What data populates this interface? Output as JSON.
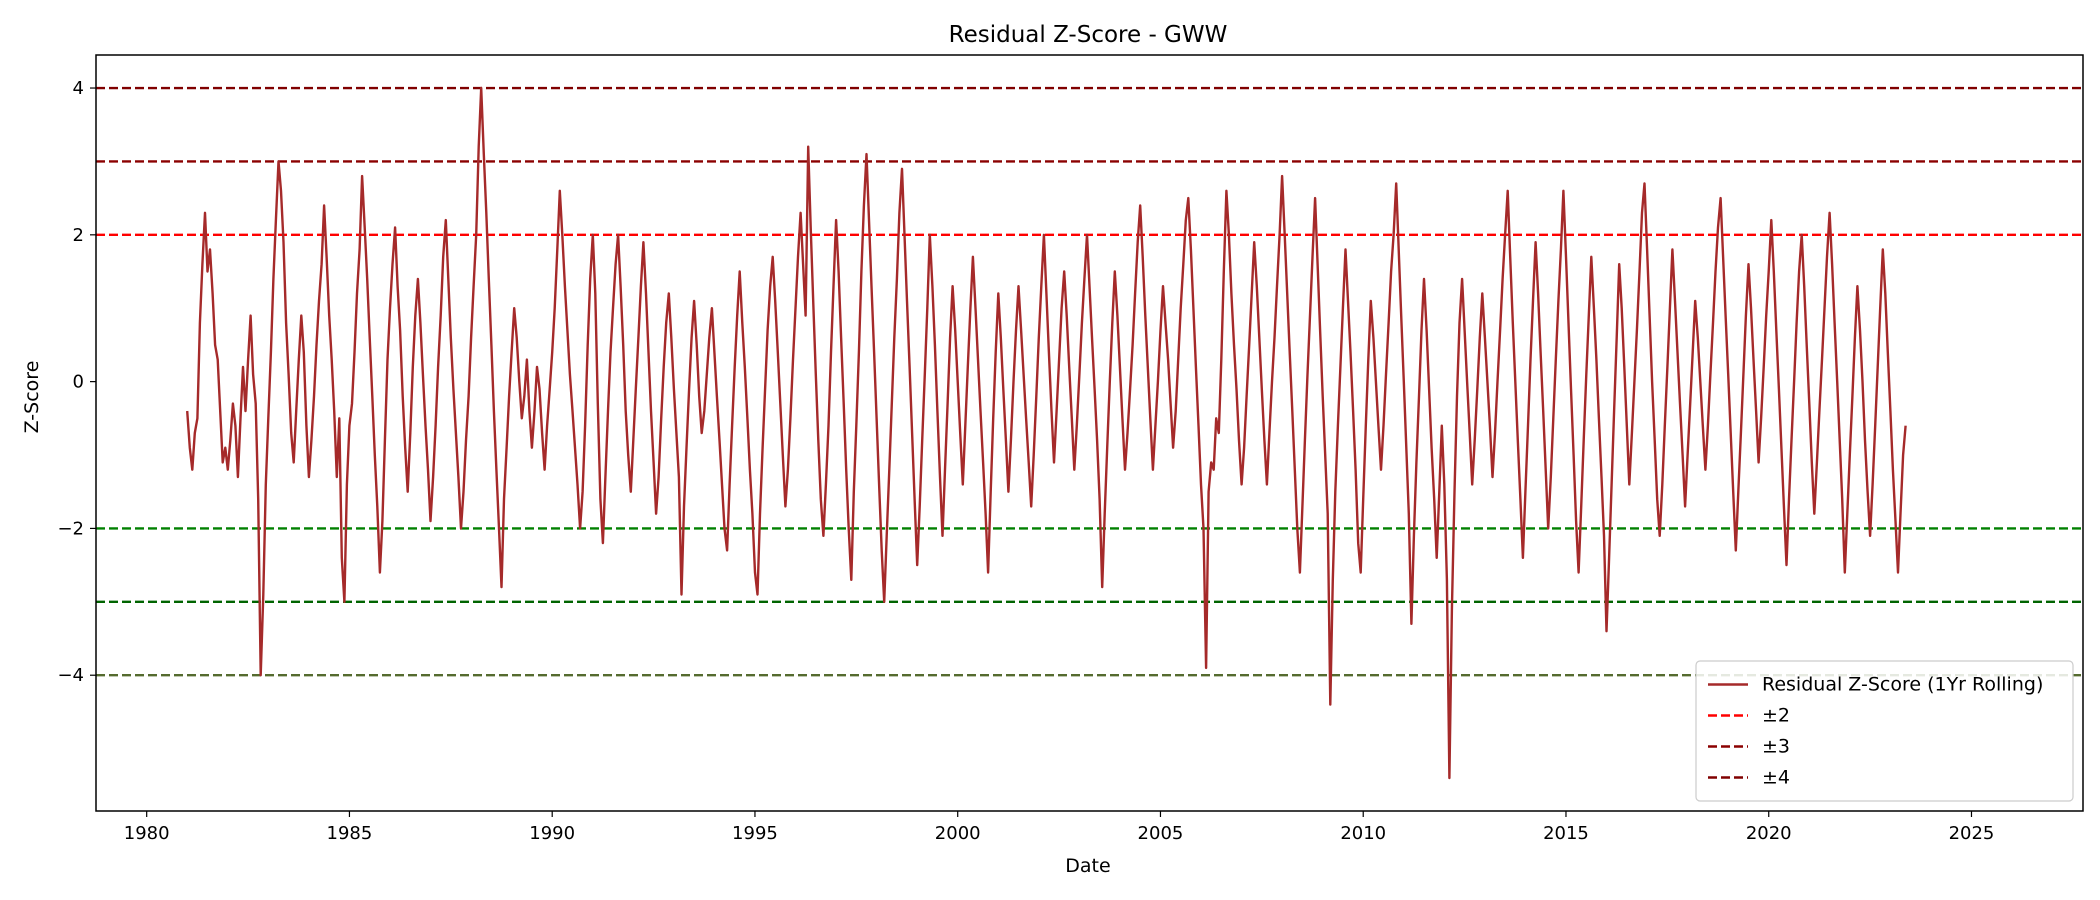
{
  "chart_data": {
    "type": "line",
    "title": "Residual Z-Score - GWW",
    "xlabel": "Date",
    "ylabel": "Z-Score",
    "xlim": [
      1978.75,
      2027.75
    ],
    "ylim": [
      -5.85,
      4.45
    ],
    "x_ticks": [
      1980,
      1985,
      1990,
      1995,
      2000,
      2005,
      2010,
      2015,
      2020,
      2025
    ],
    "y_ticks": [
      -4,
      -2,
      0,
      2,
      4
    ],
    "grid": false,
    "legend_position": "lower-right",
    "series": [
      {
        "name": "Residual Z-Score (1Yr Rolling)",
        "color": "#a52a2a",
        "x_start": 1981.0,
        "x_step": 0.0625,
        "values": [
          -0.4,
          -0.9,
          -1.2,
          -0.7,
          -0.5,
          0.8,
          1.6,
          2.3,
          1.5,
          1.8,
          1.2,
          0.5,
          0.3,
          -0.4,
          -1.1,
          -0.9,
          -1.2,
          -0.8,
          -0.3,
          -0.6,
          -1.3,
          -0.5,
          0.2,
          -0.4,
          0.3,
          0.9,
          0.1,
          -0.3,
          -1.6,
          -4.0,
          -2.9,
          -1.4,
          -0.5,
          0.4,
          1.4,
          2.2,
          3.0,
          2.6,
          1.9,
          0.8,
          0.1,
          -0.7,
          -1.1,
          -0.4,
          0.3,
          0.9,
          0.4,
          -0.6,
          -1.3,
          -0.8,
          -0.2,
          0.5,
          1.1,
          1.6,
          2.4,
          1.7,
          0.9,
          0.3,
          -0.4,
          -1.3,
          -0.5,
          -2.4,
          -3.0,
          -1.4,
          -0.6,
          -0.3,
          0.4,
          1.2,
          1.8,
          2.8,
          2.1,
          1.4,
          0.6,
          -0.2,
          -1.0,
          -1.7,
          -2.6,
          -1.9,
          -0.8,
          0.3,
          1.0,
          1.6,
          2.1,
          1.3,
          0.7,
          -0.2,
          -0.9,
          -1.5,
          -0.7,
          0.2,
          0.9,
          1.4,
          0.8,
          0.1,
          -0.6,
          -1.2,
          -1.9,
          -1.3,
          -0.6,
          0.2,
          0.9,
          1.7,
          2.2,
          1.4,
          0.6,
          -0.1,
          -0.7,
          -1.3,
          -2.0,
          -1.5,
          -0.8,
          -0.2,
          0.6,
          1.3,
          2.0,
          3.2,
          4.0,
          3.1,
          2.3,
          1.4,
          0.5,
          -0.4,
          -1.2,
          -2.0,
          -2.8,
          -1.6,
          -0.9,
          -0.2,
          0.4,
          1.0,
          0.6,
          0.0,
          -0.5,
          -0.2,
          0.3,
          -0.4,
          -0.9,
          -0.4,
          0.2,
          -0.1,
          -0.7,
          -1.2,
          -0.6,
          -0.1,
          0.4,
          1.0,
          1.8,
          2.6,
          2.0,
          1.3,
          0.7,
          0.1,
          -0.4,
          -0.9,
          -1.4,
          -2.0,
          -1.5,
          -0.6,
          0.5,
          1.4,
          2.0,
          1.2,
          -0.3,
          -1.6,
          -2.2,
          -1.3,
          -0.4,
          0.4,
          1.0,
          1.6,
          2.0,
          1.3,
          0.5,
          -0.4,
          -1.0,
          -1.5,
          -0.8,
          -0.1,
          0.6,
          1.3,
          1.9,
          1.2,
          0.4,
          -0.4,
          -1.1,
          -1.8,
          -1.3,
          -0.5,
          0.2,
          0.8,
          1.2,
          0.6,
          -0.1,
          -0.7,
          -1.3,
          -2.9,
          -1.7,
          -0.9,
          -0.1,
          0.6,
          1.1,
          0.5,
          -0.2,
          -0.7,
          -0.4,
          0.1,
          0.6,
          1.0,
          0.4,
          -0.2,
          -0.8,
          -1.4,
          -2.0,
          -2.3,
          -1.4,
          -0.6,
          0.2,
          0.9,
          1.5,
          0.8,
          0.2,
          -0.5,
          -1.2,
          -1.8,
          -2.6,
          -2.9,
          -1.8,
          -0.9,
          -0.1,
          0.7,
          1.3,
          1.7,
          1.1,
          0.4,
          -0.3,
          -1.0,
          -1.7,
          -1.2,
          -0.5,
          0.3,
          1.0,
          1.7,
          2.3,
          1.6,
          0.9,
          3.2,
          2.1,
          1.1,
          0.1,
          -0.8,
          -1.6,
          -2.1,
          -1.4,
          -0.6,
          0.4,
          1.3,
          2.2,
          1.5,
          0.6,
          -0.3,
          -1.2,
          -2.0,
          -2.7,
          -1.5,
          -0.6,
          0.4,
          1.5,
          2.4,
          3.1,
          2.2,
          1.3,
          0.4,
          -0.5,
          -1.4,
          -2.3,
          -3.0,
          -2.1,
          -1.2,
          -0.3,
          0.6,
          1.4,
          2.3,
          2.9,
          2.0,
          1.1,
          0.2,
          -0.7,
          -1.6,
          -2.5,
          -1.7,
          -0.8,
          0.1,
          1.0,
          2.0,
          1.3,
          0.5,
          -0.4,
          -1.3,
          -2.1,
          -1.2,
          -0.3,
          0.6,
          1.3,
          0.7,
          0.0,
          -0.7,
          -1.4,
          -0.6,
          0.2,
          1.0,
          1.7,
          1.0,
          0.3,
          -0.4,
          -1.1,
          -1.8,
          -2.6,
          -1.5,
          -0.5,
          0.4,
          1.2,
          0.6,
          -0.1,
          -0.8,
          -1.5,
          -0.8,
          0.0,
          0.7,
          1.3,
          0.7,
          0.1,
          -0.5,
          -1.1,
          -1.7,
          -1.0,
          -0.2,
          0.6,
          1.3,
          2.0,
          1.2,
          0.4,
          -0.4,
          -1.1,
          -0.4,
          0.3,
          1.0,
          1.5,
          0.9,
          0.2,
          -0.5,
          -1.2,
          -0.6,
          0.1,
          0.8,
          1.4,
          2.0,
          1.3,
          0.6,
          -0.1,
          -0.8,
          -1.6,
          -2.8,
          -1.8,
          -0.9,
          0.0,
          0.8,
          1.5,
          0.9,
          0.2,
          -0.5,
          -1.2,
          -0.7,
          -0.1,
          0.5,
          1.2,
          1.9,
          2.4,
          1.7,
          0.9,
          0.2,
          -0.5,
          -1.2,
          -0.6,
          0.0,
          0.7,
          1.3,
          0.8,
          0.3,
          -0.3,
          -0.9,
          -0.4,
          0.3,
          1.0,
          1.6,
          2.2,
          2.5,
          1.8,
          1.0,
          0.2,
          -0.6,
          -1.4,
          -2.0,
          -3.9,
          -1.5,
          -1.1,
          -1.2,
          -0.5,
          -0.7,
          0.3,
          1.5,
          2.6,
          2.0,
          1.2,
          0.5,
          -0.1,
          -0.8,
          -1.4,
          -0.9,
          -0.2,
          0.5,
          1.2,
          1.9,
          1.3,
          0.6,
          -0.1,
          -0.8,
          -1.4,
          -0.7,
          0.0,
          0.6,
          1.3,
          2.0,
          2.8,
          2.0,
          1.2,
          0.4,
          -0.4,
          -1.2,
          -2.0,
          -2.6,
          -1.7,
          -0.8,
          0.1,
          0.9,
          1.7,
          2.5,
          1.6,
          0.7,
          -0.2,
          -1.0,
          -1.8,
          -4.4,
          -2.7,
          -1.5,
          -0.6,
          0.2,
          1.0,
          1.8,
          1.1,
          0.4,
          -0.4,
          -1.2,
          -2.2,
          -2.6,
          -1.6,
          -0.6,
          0.3,
          1.1,
          0.6,
          0.0,
          -0.6,
          -1.2,
          -0.6,
          0.1,
          0.8,
          1.5,
          2.0,
          2.7,
          1.8,
          0.9,
          0.0,
          -0.9,
          -1.8,
          -3.3,
          -2.1,
          -1.1,
          -0.2,
          0.7,
          1.4,
          0.7,
          -0.1,
          -0.9,
          -1.6,
          -2.4,
          -1.5,
          -0.6,
          -1.4,
          -2.7,
          -5.4,
          -3.1,
          -1.5,
          -0.2,
          0.8,
          1.4,
          0.7,
          0.0,
          -0.7,
          -1.4,
          -0.8,
          -0.1,
          0.6,
          1.2,
          0.6,
          0.0,
          -0.6,
          -1.3,
          -0.7,
          0.0,
          0.7,
          1.4,
          2.0,
          2.6,
          1.7,
          0.8,
          0.0,
          -0.8,
          -1.6,
          -2.4,
          -1.5,
          -0.6,
          0.3,
          1.1,
          1.9,
          1.2,
          0.4,
          -0.4,
          -1.2,
          -2.0,
          -1.3,
          -0.5,
          0.3,
          1.1,
          1.8,
          2.6,
          1.7,
          0.8,
          -0.1,
          -1.0,
          -1.9,
          -2.6,
          -1.7,
          -0.8,
          0.1,
          0.9,
          1.7,
          1.0,
          0.3,
          -0.5,
          -1.3,
          -2.1,
          -3.4,
          -2.4,
          -1.4,
          -0.4,
          0.6,
          1.6,
          1.0,
          0.2,
          -0.6,
          -1.4,
          -0.7,
          0.0,
          0.7,
          1.5,
          2.3,
          2.7,
          1.8,
          0.9,
          0.0,
          -0.8,
          -1.6,
          -2.1,
          -1.4,
          -0.6,
          0.2,
          1.0,
          1.8,
          1.1,
          0.4,
          -0.3,
          -1.0,
          -1.7,
          -1.0,
          -0.3,
          0.4,
          1.1,
          0.6,
          0.0,
          -0.6,
          -1.2,
          -0.6,
          0.1,
          0.8,
          1.5,
          2.1,
          2.5,
          1.7,
          0.9,
          0.1,
          -0.7,
          -1.5,
          -2.3,
          -1.5,
          -0.7,
          0.1,
          0.9,
          1.6,
          1.0,
          0.3,
          -0.4,
          -1.1,
          -0.5,
          0.2,
          0.9,
          1.5,
          2.2,
          1.5,
          0.7,
          -0.1,
          -0.9,
          -1.7,
          -2.5,
          -1.6,
          -0.8,
          0.0,
          0.8,
          1.5,
          2.0,
          1.3,
          0.5,
          -0.3,
          -1.1,
          -1.8,
          -1.1,
          -0.4,
          0.3,
          1.0,
          1.7,
          2.3,
          1.6,
          0.8,
          0.0,
          -0.8,
          -1.6,
          -2.6,
          -1.8,
          -1.0,
          -0.2,
          0.6,
          1.3,
          0.7,
          0.0,
          -0.8,
          -1.5,
          -2.1,
          -1.4,
          -0.6,
          0.2,
          1.0,
          1.8,
          1.2,
          0.4,
          -0.4,
          -1.2,
          -1.9,
          -2.6,
          -1.8,
          -1.0,
          -0.6
        ]
      }
    ],
    "reference_lines": [
      {
        "label": "±2",
        "color": "#ff0000",
        "values": [
          2
        ],
        "show_in_legend": true
      },
      {
        "label": "",
        "color": "#008000",
        "values": [
          -2
        ],
        "show_in_legend": false
      },
      {
        "label": "±3",
        "color": "#8b0000",
        "values": [
          3
        ],
        "show_in_legend": true
      },
      {
        "label": "",
        "color": "#006400",
        "values": [
          -3
        ],
        "show_in_legend": false
      },
      {
        "label": "±4",
        "color": "#800000",
        "values": [
          4
        ],
        "show_in_legend": true
      },
      {
        "label": "",
        "color": "#556b2f",
        "values": [
          -4
        ],
        "show_in_legend": false
      }
    ]
  }
}
